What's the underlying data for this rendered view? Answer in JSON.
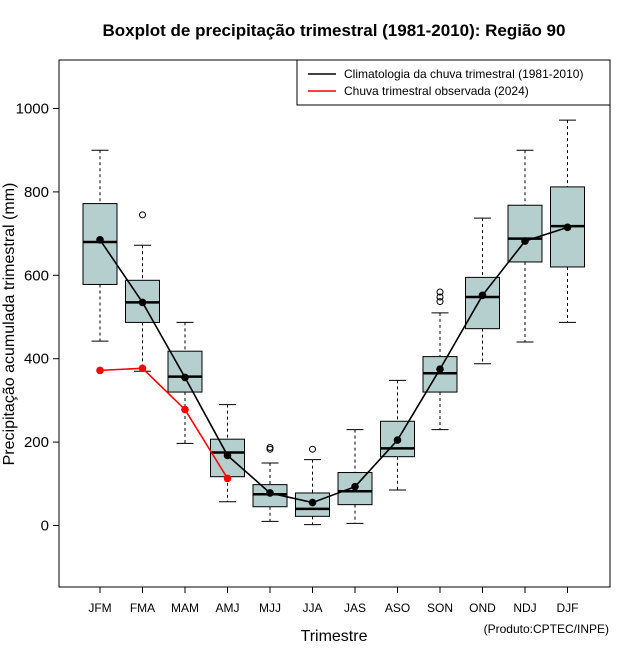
{
  "chart_data": {
    "type": "boxplot",
    "title": "Boxplot de precipitação trimestral (1981-2010): Região 90",
    "xlabel": "Trimestre",
    "ylabel": "Precipitação acumulada trimestral (mm)",
    "ylim": [
      -145,
      1115
    ],
    "yticks": [
      0,
      200,
      400,
      600,
      800,
      1000
    ],
    "categories": [
      "JFM",
      "FMA",
      "MAM",
      "AMJ",
      "MJJ",
      "JJA",
      "JAS",
      "ASO",
      "SON",
      "OND",
      "NDJ",
      "DJF"
    ],
    "boxes": [
      {
        "whisker_low": 442,
        "q1": 578,
        "median": 680,
        "q3": 772,
        "whisker_high": 900,
        "outliers": []
      },
      {
        "whisker_low": 370,
        "q1": 487,
        "median": 535,
        "q3": 588,
        "whisker_high": 672,
        "outliers": [
          745
        ]
      },
      {
        "whisker_low": 197,
        "q1": 320,
        "median": 357,
        "q3": 418,
        "whisker_high": 487,
        "outliers": []
      },
      {
        "whisker_low": 57,
        "q1": 117,
        "median": 175,
        "q3": 207,
        "whisker_high": 290,
        "outliers": []
      },
      {
        "whisker_low": 10,
        "q1": 45,
        "median": 75,
        "q3": 98,
        "whisker_high": 150,
        "outliers": [
          183,
          187
        ]
      },
      {
        "whisker_low": 2,
        "q1": 22,
        "median": 40,
        "q3": 78,
        "whisker_high": 158,
        "outliers": [
          183
        ]
      },
      {
        "whisker_low": 5,
        "q1": 50,
        "median": 82,
        "q3": 127,
        "whisker_high": 230,
        "outliers": []
      },
      {
        "whisker_low": 85,
        "q1": 165,
        "median": 185,
        "q3": 250,
        "whisker_high": 348,
        "outliers": []
      },
      {
        "whisker_low": 230,
        "q1": 320,
        "median": 365,
        "q3": 405,
        "whisker_high": 510,
        "outliers": [
          537,
          548,
          560
        ]
      },
      {
        "whisker_low": 388,
        "q1": 472,
        "median": 548,
        "q3": 595,
        "whisker_high": 737,
        "outliers": []
      },
      {
        "whisker_low": 440,
        "q1": 632,
        "median": 688,
        "q3": 768,
        "whisker_high": 900,
        "outliers": []
      },
      {
        "whisker_low": 487,
        "q1": 620,
        "median": 718,
        "q3": 812,
        "whisker_high": 972,
        "outliers": []
      }
    ],
    "series": [
      {
        "name": "Climatologia da chuva trimestral (1981-2010)",
        "color": "#000000",
        "values": [
          685,
          535,
          355,
          168,
          78,
          55,
          93,
          205,
          375,
          552,
          682,
          715
        ]
      },
      {
        "name": "Chuva trimestral observada (2024)",
        "color": "#ff0000",
        "values": [
          372,
          377,
          278,
          113
        ]
      }
    ],
    "box_color": "#b5cece",
    "legend_position": "top-right",
    "credit": "(Produto:CPTEC/INPE)"
  }
}
